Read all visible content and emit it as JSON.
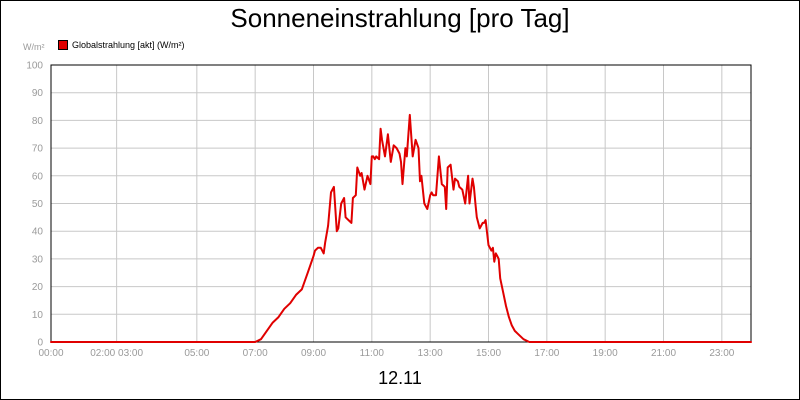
{
  "chart_data": {
    "type": "line",
    "title": "Sonneneinstrahlung [pro Tag]",
    "ylabel": "W/m²",
    "xlabel": "12.11",
    "ylim": [
      0,
      100
    ],
    "xlim_hours": [
      0,
      24
    ],
    "y_ticks": [
      "0",
      "10",
      "20",
      "30",
      "40",
      "50",
      "60",
      "70",
      "80",
      "90",
      "100"
    ],
    "x_ticks": [
      {
        "hour": 0,
        "label": "00:00"
      },
      {
        "hour": 2.25,
        "label": "02:00 03:00"
      },
      {
        "hour": 5,
        "label": "05:00"
      },
      {
        "hour": 7,
        "label": "07:00"
      },
      {
        "hour": 9,
        "label": "09:00"
      },
      {
        "hour": 11,
        "label": "11:00"
      },
      {
        "hour": 13,
        "label": "13:00"
      },
      {
        "hour": 15,
        "label": "15:00"
      },
      {
        "hour": 17,
        "label": "17:00"
      },
      {
        "hour": 19,
        "label": "19:00"
      },
      {
        "hour": 21,
        "label": "21:00"
      },
      {
        "hour": 23,
        "label": "23:00"
      }
    ],
    "grid": true,
    "legend_position": "top-left",
    "series": [
      {
        "name": "Globalstrahlung [akt] (W/m²)",
        "color": "#e00000",
        "x": [
          0,
          7.0,
          7.2,
          7.4,
          7.6,
          7.8,
          8.0,
          8.2,
          8.4,
          8.6,
          8.8,
          8.9,
          9.0,
          9.05,
          9.15,
          9.25,
          9.35,
          9.4,
          9.5,
          9.6,
          9.7,
          9.8,
          9.85,
          9.95,
          10.05,
          10.1,
          10.2,
          10.3,
          10.35,
          10.45,
          10.5,
          10.6,
          10.65,
          10.75,
          10.85,
          10.95,
          11.0,
          11.05,
          11.1,
          11.15,
          11.25,
          11.3,
          11.35,
          11.45,
          11.55,
          11.65,
          11.75,
          11.85,
          11.95,
          12.0,
          12.05,
          12.15,
          12.2,
          12.3,
          12.4,
          12.5,
          12.6,
          12.65,
          12.7,
          12.8,
          12.9,
          13.0,
          13.05,
          13.1,
          13.2,
          13.3,
          13.4,
          13.5,
          13.55,
          13.6,
          13.7,
          13.8,
          13.85,
          13.95,
          14.0,
          14.1,
          14.2,
          14.3,
          14.35,
          14.45,
          14.5,
          14.55,
          14.6,
          14.7,
          14.8,
          14.85,
          14.9,
          15.0,
          15.1,
          15.15,
          15.2,
          15.25,
          15.3,
          15.35,
          15.4,
          15.5,
          15.6,
          15.7,
          15.8,
          15.9,
          16.0,
          16.2,
          16.4,
          16.6,
          16.8,
          17.0,
          24
        ],
        "y": [
          0,
          0,
          1,
          4,
          7,
          9,
          12,
          14,
          17,
          19,
          25,
          28,
          31,
          33,
          34,
          34,
          32,
          36,
          42,
          54,
          56,
          40,
          41,
          50,
          52,
          45,
          44,
          43,
          52,
          53,
          63,
          60,
          61,
          55,
          60,
          57,
          67,
          67,
          66,
          67,
          66,
          77,
          73,
          67,
          75,
          65,
          71,
          70,
          68,
          65,
          57,
          70,
          67,
          82,
          67,
          73,
          70,
          58,
          60,
          50,
          48,
          53,
          54,
          53,
          53,
          67,
          57,
          56,
          48,
          63,
          64,
          55,
          59,
          58,
          56,
          55,
          50,
          60,
          50,
          59,
          56,
          50,
          45,
          41,
          43,
          43,
          44,
          35,
          33,
          34,
          29,
          32,
          31,
          30,
          23,
          18,
          13,
          9,
          6,
          4,
          3,
          1,
          0,
          0,
          0,
          0,
          0
        ]
      }
    ]
  }
}
